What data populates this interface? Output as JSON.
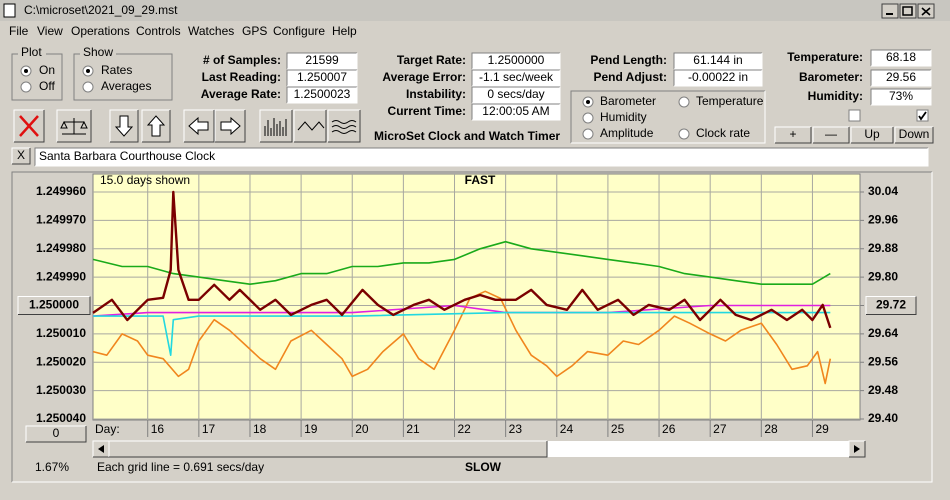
{
  "window": {
    "title": "C:\\microset\\2021_09_29.mst"
  },
  "menu": [
    "File",
    "View",
    "Operations",
    "Controls",
    "Watches",
    "GPS",
    "Configure",
    "Help"
  ],
  "plot_group": {
    "title": "Plot",
    "options": [
      "On",
      "Off"
    ],
    "selected": 0
  },
  "show_group": {
    "title": "Show",
    "options": [
      "Rates",
      "Averages"
    ],
    "selected": 0
  },
  "stats_fields": [
    {
      "label": "# of Samples:",
      "value": "21599"
    },
    {
      "label": "Last Reading:",
      "value": "1.250007"
    },
    {
      "label": "Average Rate:",
      "value": "1.2500023"
    }
  ],
  "rate_fields": [
    {
      "label": "Target Rate:",
      "value": "1.2500000"
    },
    {
      "label": "Average Error:",
      "value": "-1.1 sec/week"
    },
    {
      "label": "Instability:",
      "value": "0 secs/day"
    },
    {
      "label": "Current Time:",
      "value": "12:00:05 AM"
    }
  ],
  "pend_fields": [
    {
      "label": "Pend Length:",
      "value": "61.144 in"
    },
    {
      "label": "Pend Adjust:",
      "value": "-0.00022 in"
    }
  ],
  "env_fields": [
    {
      "label": "Temperature:",
      "value": "68.18"
    },
    {
      "label": "Barometer:",
      "value": "29.56"
    },
    {
      "label": "Humidity:",
      "value": "73%"
    }
  ],
  "app_title": "MicroSet Clock and Watch Timer",
  "adjust_buttons": [
    "+",
    "—",
    "Up",
    "Down"
  ],
  "close_button": "X",
  "clock_name": "Santa Barbara Courthouse Clock",
  "bottom_button": "0",
  "status": {
    "percent": "1.67%",
    "grid_note": "Each grid line = 0.691 secs/day"
  },
  "chart_data": {
    "type": "line",
    "top_label": "FAST",
    "bottom_label": "SLOW",
    "days_shown": "15.0 days shown",
    "x_label": "Day:",
    "xlim": [
      14.93,
      29.93
    ],
    "xticks": [
      16,
      17,
      18,
      19,
      20,
      21,
      22,
      23,
      24,
      25,
      26,
      27,
      28,
      29
    ],
    "ylim": [
      1.25004,
      1.24996
    ],
    "yticks": [
      {
        "value": 1.24996,
        "label": "1.249960"
      },
      {
        "value": 1.24997,
        "label": "1.249970"
      },
      {
        "value": 1.24998,
        "label": "1.249980"
      },
      {
        "value": 1.24999,
        "label": "1.249990"
      },
      {
        "value": 1.25,
        "label": "1.250000"
      },
      {
        "value": 1.25001,
        "label": "1.250010"
      },
      {
        "value": 1.25002,
        "label": "1.250020"
      },
      {
        "value": 1.25003,
        "label": "1.250030"
      },
      {
        "value": 1.25004,
        "label": "1.250040"
      }
    ],
    "y2lim": [
      29.4,
      30.04
    ],
    "y2ticks": [
      30.04,
      29.96,
      29.88,
      {
        "value": 29.8,
        "label": "29.80"
      },
      29.72,
      29.64,
      29.56,
      29.48,
      {
        "value": 29.4,
        "label": "29.40"
      }
    ],
    "grid": true,
    "selected_series": 0,
    "series": [
      {
        "name": "Barometer",
        "color": "#f0861e",
        "axis": "y2",
        "x": [
          14.93,
          15.2,
          15.5,
          15.8,
          16.0,
          16.3,
          16.6,
          16.8,
          17.0,
          17.3,
          17.6,
          17.9,
          18.2,
          18.5,
          18.8,
          19.2,
          19.5,
          19.8,
          20.0,
          20.3,
          20.6,
          21.0,
          21.3,
          21.6,
          22.0,
          22.3,
          22.6,
          22.9,
          23.2,
          23.5,
          23.8,
          24.0,
          24.3,
          24.6,
          25.0,
          25.3,
          25.6,
          26.0,
          26.3,
          26.6,
          27.0,
          27.3,
          27.6,
          28.0,
          28.3,
          28.6,
          28.9,
          29.1,
          29.25,
          29.35
        ],
        "values": [
          29.59,
          29.58,
          29.64,
          29.62,
          29.58,
          29.57,
          29.52,
          29.54,
          29.62,
          29.68,
          29.65,
          29.61,
          29.57,
          29.54,
          29.62,
          29.65,
          29.61,
          29.57,
          29.52,
          29.54,
          29.59,
          29.64,
          29.57,
          29.54,
          29.65,
          29.74,
          29.76,
          29.74,
          29.65,
          29.58,
          29.55,
          29.52,
          29.55,
          29.59,
          29.58,
          29.62,
          29.61,
          29.65,
          29.69,
          29.67,
          29.64,
          29.62,
          29.65,
          29.67,
          29.61,
          29.54,
          29.55,
          29.59,
          29.5,
          29.57
        ]
      },
      {
        "name": "Temperature",
        "color": "#1aaa1a",
        "axis": "y2",
        "x": [
          14.93,
          15.5,
          16,
          16.5,
          17,
          17.5,
          18,
          18.5,
          19,
          19.5,
          20,
          20.5,
          21,
          21.5,
          22,
          22.5,
          23,
          23.5,
          24,
          24.5,
          25,
          25.5,
          26,
          26.5,
          27,
          27.5,
          28,
          28.5,
          29,
          29.35
        ],
        "values": [
          29.85,
          29.83,
          29.83,
          29.81,
          29.8,
          29.79,
          29.78,
          29.79,
          29.81,
          29.81,
          29.83,
          29.83,
          29.84,
          29.84,
          29.85,
          29.88,
          29.9,
          29.88,
          29.87,
          29.86,
          29.85,
          29.84,
          29.83,
          29.81,
          29.8,
          29.79,
          29.78,
          29.78,
          29.78,
          29.81
        ]
      },
      {
        "name": "Humidity",
        "color": "#e020e0",
        "axis": "y2",
        "x": [
          14.93,
          16,
          17,
          18,
          19,
          20,
          21,
          22,
          23,
          24,
          25,
          26,
          27,
          28,
          29,
          29.35
        ],
        "values": [
          29.69,
          29.7,
          29.7,
          29.7,
          29.7,
          29.7,
          29.71,
          29.72,
          29.7,
          29.7,
          29.7,
          29.71,
          29.72,
          29.72,
          29.72,
          29.72
        ]
      },
      {
        "name": "Amplitude",
        "color": "#22d8e0",
        "axis": "y2",
        "x": [
          14.93,
          16.3,
          16.45,
          16.5,
          17,
          20,
          23,
          26,
          29.35
        ],
        "values": [
          29.69,
          29.69,
          29.58,
          29.68,
          29.69,
          29.69,
          29.7,
          29.7,
          29.7
        ]
      },
      {
        "name": "Clock rate",
        "color": "#7a0000",
        "x": [
          14.93,
          15.3,
          15.6,
          16.0,
          16.3,
          16.45,
          16.5,
          16.6,
          16.8,
          17.0,
          17.3,
          17.6,
          17.8,
          18.2,
          18.5,
          18.8,
          19.2,
          19.5,
          19.8,
          20.2,
          20.5,
          20.8,
          21.2,
          21.5,
          21.8,
          22.2,
          22.5,
          22.8,
          23.2,
          23.5,
          23.8,
          24.2,
          24.5,
          24.8,
          25.2,
          25.5,
          25.8,
          26.2,
          26.5,
          26.8,
          27.2,
          27.5,
          27.8,
          28.2,
          28.5,
          28.8,
          29.0,
          29.2,
          29.35
        ],
        "values": [
          1.2500026,
          1.249998,
          1.2500051,
          1.249998,
          1.2499973,
          1.2499875,
          1.24996,
          1.2499875,
          1.249998,
          1.249998,
          1.2499927,
          1.249998,
          1.2499945,
          1.2500015,
          1.249998,
          1.2500033,
          1.2499998,
          1.249998,
          1.2500033,
          1.2499945,
          1.2499998,
          1.2500033,
          1.2499998,
          1.249998,
          1.2500015,
          1.249998,
          1.2499963,
          1.249998,
          1.249998,
          1.2499945,
          1.2499998,
          1.2500015,
          1.2499945,
          1.2500015,
          1.249998,
          1.2500033,
          1.2499998,
          1.2500015,
          1.249998,
          1.2500051,
          1.249998,
          1.2500033,
          1.2500051,
          1.2500015,
          1.2500051,
          1.2500015,
          1.2500051,
          1.2499998,
          1.2500079
        ]
      }
    ]
  }
}
